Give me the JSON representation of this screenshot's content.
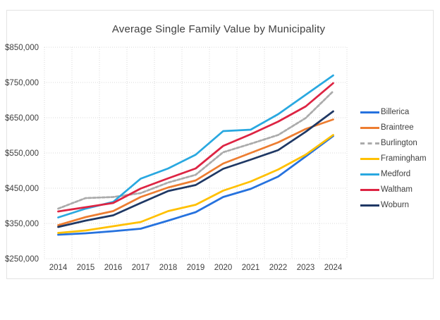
{
  "chart_data": {
    "type": "line",
    "title": "Average Single Family Value by Municipality",
    "categories": [
      "2014",
      "2015",
      "2016",
      "2017",
      "2018",
      "2019",
      "2020",
      "2021",
      "2022",
      "2023",
      "2024"
    ],
    "series": [
      {
        "name": "Billerica",
        "color": "#2672de",
        "dash": "solid",
        "values": [
          318000,
          322000,
          328000,
          335000,
          358000,
          382000,
          425000,
          448000,
          483000,
          540000,
          598000
        ]
      },
      {
        "name": "Braintree",
        "color": "#ed7d31",
        "dash": "solid",
        "values": [
          345000,
          368000,
          385000,
          425000,
          452000,
          472000,
          520000,
          550000,
          580000,
          618000,
          645000
        ]
      },
      {
        "name": "Burlington",
        "color": "#ababab",
        "dash": "dashed",
        "values": [
          392000,
          422000,
          425000,
          436000,
          466000,
          488000,
          552000,
          576000,
          601000,
          649000,
          725000
        ]
      },
      {
        "name": "Framingham",
        "color": "#ffc000",
        "dash": "solid",
        "values": [
          323000,
          330000,
          342000,
          354000,
          385000,
          403000,
          443000,
          469000,
          503000,
          545000,
          601000
        ]
      },
      {
        "name": "Medford",
        "color": "#29a8e0",
        "dash": "solid",
        "values": [
          367000,
          392000,
          411000,
          477000,
          506000,
          545000,
          612000,
          616000,
          660000,
          715000,
          770000
        ]
      },
      {
        "name": "Waltham",
        "color": "#dd2443",
        "dash": "solid",
        "values": [
          384000,
          396000,
          408000,
          449000,
          478000,
          506000,
          570000,
          603000,
          639000,
          682000,
          748000
        ]
      },
      {
        "name": "Woburn",
        "color": "#1f3864",
        "dash": "solid",
        "values": [
          340000,
          358000,
          373000,
          408000,
          442000,
          459000,
          505000,
          531000,
          558000,
          610000,
          668000
        ]
      }
    ],
    "y_axis": {
      "min": 250000,
      "max": 850000,
      "step": 100000,
      "tick_labels": [
        "$250,000",
        "$350,000",
        "$450,000",
        "$550,000",
        "$650,000",
        "$750,000",
        "$850,000"
      ]
    },
    "grid": true,
    "legend_position": "right",
    "grid_color": "#d8d8d8"
  }
}
